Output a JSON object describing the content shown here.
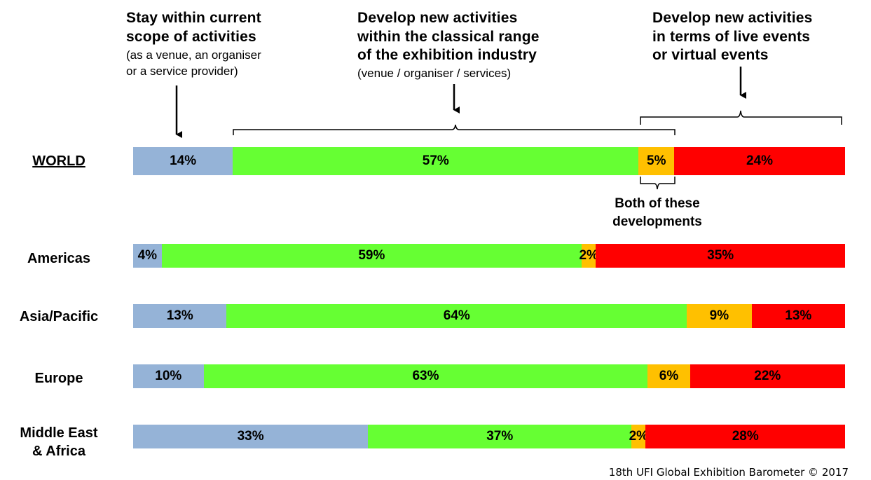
{
  "chart_data": {
    "type": "bar",
    "orientation": "horizontal",
    "stacked": true,
    "percent_scale": true,
    "categories": [
      "WORLD",
      "Americas",
      "Asia/Pacific",
      "Europe",
      "Middle East\n& Africa"
    ],
    "series": [
      {
        "name": "Stay within current scope of activities",
        "color": "#95B3D7",
        "values": [
          14,
          4,
          13,
          10,
          33
        ]
      },
      {
        "name": "Develop new activities within the classical range of the exhibition industry",
        "color": "#66FF33",
        "values": [
          57,
          59,
          64,
          63,
          37
        ]
      },
      {
        "name": "Both of these developments",
        "color": "#FFC000",
        "values": [
          5,
          2,
          9,
          6,
          2
        ]
      },
      {
        "name": "Develop new activities in terms of live events or virtual events",
        "color": "#FF0000",
        "values": [
          24,
          35,
          13,
          22,
          28
        ]
      }
    ],
    "headers": [
      {
        "bold": "Stay within current\nscope of activities",
        "sub": "(as a venue, an organiser\nor a service provider)"
      },
      {
        "bold": "Develop new activities\nwithin the classical range\nof the exhibition industry",
        "sub": "(venue / organiser / services)"
      },
      {
        "bold": "Develop new activities\nin terms of live events\nor virtual events",
        "sub": ""
      }
    ],
    "annotation": "Both of these\ndevelopments",
    "source": "18th UFI Global Exhibition Barometer  © 2017"
  }
}
